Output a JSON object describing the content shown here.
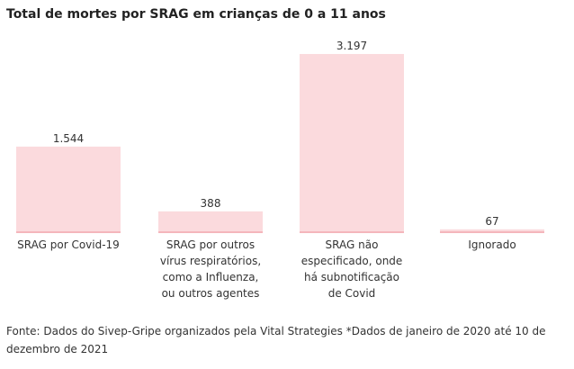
{
  "chart_data": {
    "type": "bar",
    "title": "Total de mortes por SRAG em crianças de 0 a 11 anos",
    "categories": [
      "SRAG por Covid-19",
      "SRAG por outros vírus respiratórios, como a Influenza, ou outros agentes",
      "SRAG não especificado, onde há subnotificação de Covid",
      "Ignorado"
    ],
    "values": [
      1544,
      388,
      3197,
      67
    ],
    "value_labels": [
      "1.544",
      "388",
      "3.197",
      "67"
    ],
    "xlabel": "",
    "ylabel": "",
    "ylim": [
      0,
      3197
    ],
    "grid": false,
    "legend": "none",
    "bar_color": "#fbdadd",
    "baseline_color": "#f4b6bc"
  },
  "footer": {
    "source": "Fonte: Dados do Sivep-Gripe organizados pela Vital Strategies *Dados de janeiro de 2020 até 10 de dezembro de 2021"
  }
}
